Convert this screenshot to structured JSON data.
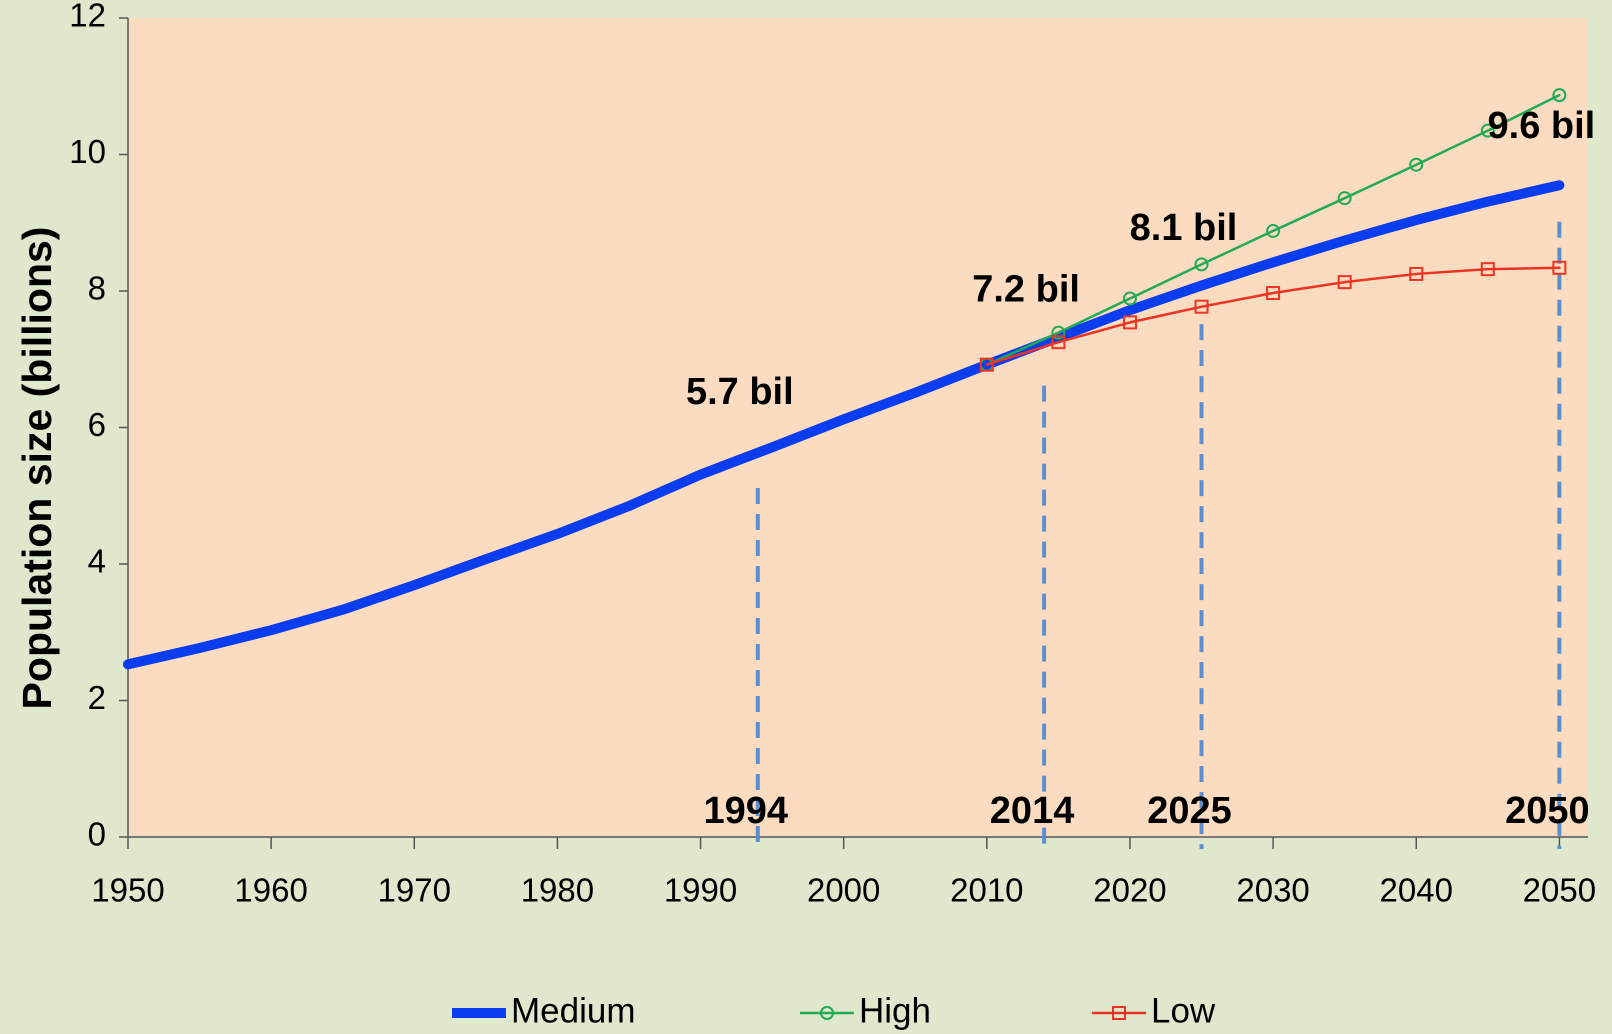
{
  "chart_data": {
    "type": "line",
    "ylabel": "Population size (billions)",
    "xlim": [
      1950,
      2052
    ],
    "xticks": [
      1950,
      1960,
      1970,
      1980,
      1990,
      2000,
      2010,
      2020,
      2030,
      2040,
      2050
    ],
    "ylim": [
      0,
      12
    ],
    "yticks": [
      0,
      2,
      4,
      6,
      8,
      10,
      12
    ],
    "legend": "bottom",
    "series": [
      {
        "name": "Medium",
        "color": "#0a3cf0",
        "marker": "none",
        "x": [
          1950,
          1955,
          1960,
          1965,
          1970,
          1975,
          1980,
          1985,
          1990,
          1995,
          2000,
          2005,
          2010,
          2015,
          2020,
          2025,
          2030,
          2035,
          2040,
          2045,
          2050
        ],
        "values": [
          2.53,
          2.77,
          3.03,
          3.33,
          3.69,
          4.07,
          4.44,
          4.85,
          5.31,
          5.71,
          6.12,
          6.51,
          6.92,
          7.32,
          7.72,
          8.08,
          8.42,
          8.74,
          9.04,
          9.31,
          9.55
        ]
      },
      {
        "name": "High",
        "color": "#22aa55",
        "marker": "circle",
        "x": [
          2010,
          2015,
          2020,
          2025,
          2030,
          2035,
          2040,
          2045,
          2050
        ],
        "values": [
          6.92,
          7.39,
          7.89,
          8.39,
          8.88,
          9.36,
          9.85,
          10.35,
          10.87
        ]
      },
      {
        "name": "Low",
        "color": "#ee3322",
        "marker": "square",
        "x": [
          2010,
          2015,
          2020,
          2025,
          2030,
          2035,
          2040,
          2045,
          2050
        ],
        "values": [
          6.92,
          7.25,
          7.54,
          7.77,
          7.97,
          8.13,
          8.25,
          8.32,
          8.34
        ]
      }
    ],
    "annotations": [
      {
        "label": "5.7 bil",
        "year_label": "1994",
        "x": 1994,
        "y": 5.7
      },
      {
        "label": "7.2 bil",
        "year_label": "2014",
        "x": 2014,
        "y": 7.2
      },
      {
        "label": "8.1 bil",
        "year_label": "2025",
        "x": 2025,
        "y": 8.1
      },
      {
        "label": "9.6 bil",
        "year_label": "2050",
        "x": 2050,
        "y": 9.6
      }
    ],
    "annotation_color": "#5b8fd0",
    "plot_color": "#fcdcc0"
  }
}
